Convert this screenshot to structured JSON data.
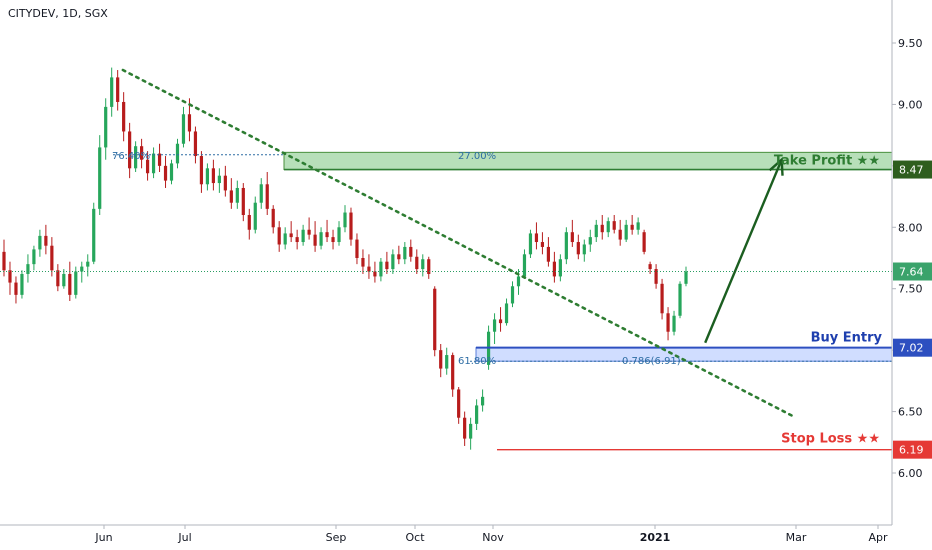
{
  "chart_data": {
    "type": "candlestick",
    "title": "CITYDEV, 1D, SGX",
    "x_ticks": [
      "Jun",
      "Jul",
      "Sep",
      "Oct",
      "Nov",
      "2021",
      "Mar",
      "Apr"
    ],
    "y_ticks": [
      "9.50",
      "9.00",
      "8.50",
      "8.00",
      "7.50",
      "7.00",
      "6.50",
      "6.00"
    ],
    "ylim": [
      5.6,
      9.7
    ],
    "grid": false,
    "price_labels": {
      "take_profit": "8.47",
      "current": "7.64",
      "buy_entry": "7.02",
      "stop_loss": "6.19"
    },
    "levels": {
      "take_profit": 8.47,
      "current": 7.64,
      "buy_entry": 7.02,
      "stop_loss": 6.19,
      "fib_38_2": 6.91,
      "fib_76_4": 8.59
    },
    "zones": {
      "take_profit_zone": [
        8.47,
        8.61
      ],
      "buy_entry_zone": [
        6.91,
        7.02
      ]
    },
    "annotations": {
      "take_profit": "Take Profit ★★",
      "buy_entry": "Buy Entry",
      "stop_loss": "Stop Loss ★★",
      "fib_76": "76.40%",
      "fib_27": "27.00%",
      "fib_61": "61.80%",
      "fib_786": "0.786(6.91)"
    },
    "trendline": {
      "from": {
        "date": "2020-06-08",
        "value": 9.28
      },
      "to": {
        "date": "2021-02-28",
        "value": 6.46
      }
    },
    "arrow": {
      "from": {
        "date": "2021-01-22",
        "value": 7.06
      },
      "to": {
        "date": "2021-02-23",
        "value": 8.55
      }
    },
    "candles": [
      {
        "o": 7.8,
        "h": 7.9,
        "l": 7.6,
        "c": 7.65
      },
      {
        "o": 7.65,
        "h": 7.72,
        "l": 7.45,
        "c": 7.55
      },
      {
        "o": 7.55,
        "h": 7.6,
        "l": 7.38,
        "c": 7.45
      },
      {
        "o": 7.45,
        "h": 7.65,
        "l": 7.42,
        "c": 7.62
      },
      {
        "o": 7.62,
        "h": 7.78,
        "l": 7.55,
        "c": 7.7
      },
      {
        "o": 7.7,
        "h": 7.85,
        "l": 7.65,
        "c": 7.82
      },
      {
        "o": 7.82,
        "h": 7.98,
        "l": 7.76,
        "c": 7.93
      },
      {
        "o": 7.93,
        "h": 8.02,
        "l": 7.78,
        "c": 7.85
      },
      {
        "o": 7.85,
        "h": 7.92,
        "l": 7.6,
        "c": 7.65
      },
      {
        "o": 7.65,
        "h": 7.7,
        "l": 7.48,
        "c": 7.52
      },
      {
        "o": 7.52,
        "h": 7.66,
        "l": 7.5,
        "c": 7.62
      },
      {
        "o": 7.62,
        "h": 7.72,
        "l": 7.4,
        "c": 7.45
      },
      {
        "o": 7.45,
        "h": 7.68,
        "l": 7.42,
        "c": 7.64
      },
      {
        "o": 7.64,
        "h": 7.72,
        "l": 7.55,
        "c": 7.68
      },
      {
        "o": 7.68,
        "h": 7.78,
        "l": 7.6,
        "c": 7.72
      },
      {
        "o": 7.72,
        "h": 8.2,
        "l": 7.7,
        "c": 8.15
      },
      {
        "o": 8.15,
        "h": 8.75,
        "l": 8.1,
        "c": 8.65
      },
      {
        "o": 8.65,
        "h": 9.05,
        "l": 8.55,
        "c": 8.98
      },
      {
        "o": 8.98,
        "h": 9.3,
        "l": 8.9,
        "c": 9.22
      },
      {
        "o": 9.22,
        "h": 9.28,
        "l": 8.95,
        "c": 9.02
      },
      {
        "o": 9.02,
        "h": 9.1,
        "l": 8.7,
        "c": 8.78
      },
      {
        "o": 8.78,
        "h": 8.85,
        "l": 8.4,
        "c": 8.48
      },
      {
        "o": 8.48,
        "h": 8.7,
        "l": 8.45,
        "c": 8.66
      },
      {
        "o": 8.66,
        "h": 8.72,
        "l": 8.48,
        "c": 8.55
      },
      {
        "o": 8.55,
        "h": 8.62,
        "l": 8.38,
        "c": 8.44
      },
      {
        "o": 8.44,
        "h": 8.65,
        "l": 8.4,
        "c": 8.6
      },
      {
        "o": 8.6,
        "h": 8.68,
        "l": 8.45,
        "c": 8.5
      },
      {
        "o": 8.5,
        "h": 8.58,
        "l": 8.32,
        "c": 8.38
      },
      {
        "o": 8.38,
        "h": 8.55,
        "l": 8.35,
        "c": 8.52
      },
      {
        "o": 8.52,
        "h": 8.72,
        "l": 8.48,
        "c": 8.68
      },
      {
        "o": 8.68,
        "h": 8.98,
        "l": 8.65,
        "c": 8.92
      },
      {
        "o": 8.92,
        "h": 9.05,
        "l": 8.7,
        "c": 8.78
      },
      {
        "o": 8.78,
        "h": 8.82,
        "l": 8.52,
        "c": 8.58
      },
      {
        "o": 8.58,
        "h": 8.62,
        "l": 8.28,
        "c": 8.35
      },
      {
        "o": 8.35,
        "h": 8.52,
        "l": 8.3,
        "c": 8.48
      },
      {
        "o": 8.48,
        "h": 8.55,
        "l": 8.3,
        "c": 8.36
      },
      {
        "o": 8.36,
        "h": 8.48,
        "l": 8.28,
        "c": 8.42
      },
      {
        "o": 8.42,
        "h": 8.5,
        "l": 8.25,
        "c": 8.3
      },
      {
        "o": 8.3,
        "h": 8.4,
        "l": 8.15,
        "c": 8.2
      },
      {
        "o": 8.2,
        "h": 8.38,
        "l": 8.15,
        "c": 8.32
      },
      {
        "o": 8.32,
        "h": 8.36,
        "l": 8.05,
        "c": 8.1
      },
      {
        "o": 8.1,
        "h": 8.15,
        "l": 7.9,
        "c": 7.98
      },
      {
        "o": 7.98,
        "h": 8.25,
        "l": 7.95,
        "c": 8.2
      },
      {
        "o": 8.2,
        "h": 8.4,
        "l": 8.15,
        "c": 8.35
      },
      {
        "o": 8.35,
        "h": 8.45,
        "l": 8.1,
        "c": 8.15
      },
      {
        "o": 8.15,
        "h": 8.18,
        "l": 7.95,
        "c": 8.0
      },
      {
        "o": 8.0,
        "h": 8.05,
        "l": 7.8,
        "c": 7.86
      },
      {
        "o": 7.86,
        "h": 8.0,
        "l": 7.82,
        "c": 7.95
      },
      {
        "o": 7.95,
        "h": 8.05,
        "l": 7.88,
        "c": 7.92
      },
      {
        "o": 7.92,
        "h": 7.98,
        "l": 7.82,
        "c": 7.88
      },
      {
        "o": 7.88,
        "h": 8.02,
        "l": 7.85,
        "c": 7.98
      },
      {
        "o": 7.98,
        "h": 8.08,
        "l": 7.9,
        "c": 7.94
      },
      {
        "o": 7.94,
        "h": 8.05,
        "l": 7.8,
        "c": 7.85
      },
      {
        "o": 7.85,
        "h": 8.0,
        "l": 7.82,
        "c": 7.96
      },
      {
        "o": 7.96,
        "h": 8.06,
        "l": 7.88,
        "c": 7.92
      },
      {
        "o": 7.92,
        "h": 7.98,
        "l": 7.82,
        "c": 7.88
      },
      {
        "o": 7.88,
        "h": 8.05,
        "l": 7.85,
        "c": 8.0
      },
      {
        "o": 8.0,
        "h": 8.18,
        "l": 7.96,
        "c": 8.12
      },
      {
        "o": 8.12,
        "h": 8.16,
        "l": 7.85,
        "c": 7.9
      },
      {
        "o": 7.9,
        "h": 7.95,
        "l": 7.7,
        "c": 7.75
      },
      {
        "o": 7.75,
        "h": 7.82,
        "l": 7.62,
        "c": 7.68
      },
      {
        "o": 7.68,
        "h": 7.78,
        "l": 7.58,
        "c": 7.64
      },
      {
        "o": 7.64,
        "h": 7.72,
        "l": 7.55,
        "c": 7.6
      },
      {
        "o": 7.6,
        "h": 7.75,
        "l": 7.56,
        "c": 7.72
      },
      {
        "o": 7.72,
        "h": 7.8,
        "l": 7.62,
        "c": 7.66
      },
      {
        "o": 7.66,
        "h": 7.82,
        "l": 7.62,
        "c": 7.78
      },
      {
        "o": 7.78,
        "h": 7.85,
        "l": 7.7,
        "c": 7.74
      },
      {
        "o": 7.74,
        "h": 7.88,
        "l": 7.7,
        "c": 7.84
      },
      {
        "o": 7.84,
        "h": 7.9,
        "l": 7.72,
        "c": 7.76
      },
      {
        "o": 7.76,
        "h": 7.82,
        "l": 7.62,
        "c": 7.66
      },
      {
        "o": 7.66,
        "h": 7.78,
        "l": 7.6,
        "c": 7.74
      },
      {
        "o": 7.74,
        "h": 7.76,
        "l": 7.58,
        "c": 7.62
      },
      {
        "o": 7.5,
        "h": 7.52,
        "l": 6.95,
        "c": 7.0
      },
      {
        "o": 7.0,
        "h": 7.05,
        "l": 6.78,
        "c": 6.85
      },
      {
        "o": 6.85,
        "h": 7.02,
        "l": 6.8,
        "c": 6.96
      },
      {
        "o": 6.96,
        "h": 6.98,
        "l": 6.62,
        "c": 6.68
      },
      {
        "o": 6.68,
        "h": 6.7,
        "l": 6.4,
        "c": 6.45
      },
      {
        "o": 6.45,
        "h": 6.5,
        "l": 6.22,
        "c": 6.28
      },
      {
        "o": 6.28,
        "h": 6.45,
        "l": 6.19,
        "c": 6.4
      },
      {
        "o": 6.4,
        "h": 6.6,
        "l": 6.35,
        "c": 6.55
      },
      {
        "o": 6.55,
        "h": 6.68,
        "l": 6.5,
        "c": 6.62
      },
      {
        "o": 6.88,
        "h": 7.2,
        "l": 6.84,
        "c": 7.15
      },
      {
        "o": 7.15,
        "h": 7.3,
        "l": 7.05,
        "c": 7.25
      },
      {
        "o": 7.25,
        "h": 7.35,
        "l": 7.15,
        "c": 7.22
      },
      {
        "o": 7.22,
        "h": 7.42,
        "l": 7.2,
        "c": 7.38
      },
      {
        "o": 7.38,
        "h": 7.56,
        "l": 7.35,
        "c": 7.52
      },
      {
        "o": 7.52,
        "h": 7.66,
        "l": 7.45,
        "c": 7.6
      },
      {
        "o": 7.6,
        "h": 7.82,
        "l": 7.58,
        "c": 7.78
      },
      {
        "o": 7.78,
        "h": 7.98,
        "l": 7.75,
        "c": 7.95
      },
      {
        "o": 7.95,
        "h": 8.04,
        "l": 7.82,
        "c": 7.88
      },
      {
        "o": 7.88,
        "h": 7.96,
        "l": 7.78,
        "c": 7.84
      },
      {
        "o": 7.84,
        "h": 7.92,
        "l": 7.68,
        "c": 7.72
      },
      {
        "o": 7.72,
        "h": 7.8,
        "l": 7.55,
        "c": 7.6
      },
      {
        "o": 7.6,
        "h": 7.78,
        "l": 7.56,
        "c": 7.74
      },
      {
        "o": 7.74,
        "h": 8.0,
        "l": 7.7,
        "c": 7.96
      },
      {
        "o": 7.96,
        "h": 8.06,
        "l": 7.84,
        "c": 7.88
      },
      {
        "o": 7.88,
        "h": 7.94,
        "l": 7.74,
        "c": 7.78
      },
      {
        "o": 7.78,
        "h": 7.9,
        "l": 7.72,
        "c": 7.86
      },
      {
        "o": 7.86,
        "h": 7.98,
        "l": 7.8,
        "c": 7.92
      },
      {
        "o": 7.92,
        "h": 8.06,
        "l": 7.88,
        "c": 8.02
      },
      {
        "o": 8.02,
        "h": 8.1,
        "l": 7.9,
        "c": 7.96
      },
      {
        "o": 7.96,
        "h": 8.08,
        "l": 7.92,
        "c": 8.05
      },
      {
        "o": 8.05,
        "h": 8.1,
        "l": 7.95,
        "c": 7.98
      },
      {
        "o": 7.98,
        "h": 8.06,
        "l": 7.85,
        "c": 7.9
      },
      {
        "o": 7.9,
        "h": 8.06,
        "l": 7.88,
        "c": 8.02
      },
      {
        "o": 8.02,
        "h": 8.1,
        "l": 7.94,
        "c": 7.98
      },
      {
        "o": 7.98,
        "h": 8.08,
        "l": 7.94,
        "c": 8.04
      },
      {
        "o": 7.96,
        "h": 7.98,
        "l": 7.78,
        "c": 7.8
      },
      {
        "o": 7.7,
        "h": 7.72,
        "l": 7.62,
        "c": 7.66
      },
      {
        "o": 7.66,
        "h": 7.7,
        "l": 7.5,
        "c": 7.54
      },
      {
        "o": 7.54,
        "h": 7.58,
        "l": 7.25,
        "c": 7.3
      },
      {
        "o": 7.3,
        "h": 7.35,
        "l": 7.08,
        "c": 7.15
      },
      {
        "o": 7.15,
        "h": 7.32,
        "l": 7.12,
        "c": 7.28
      },
      {
        "o": 7.28,
        "h": 7.56,
        "l": 7.26,
        "c": 7.54
      },
      {
        "o": 7.54,
        "h": 7.68,
        "l": 7.52,
        "c": 7.64
      }
    ]
  }
}
